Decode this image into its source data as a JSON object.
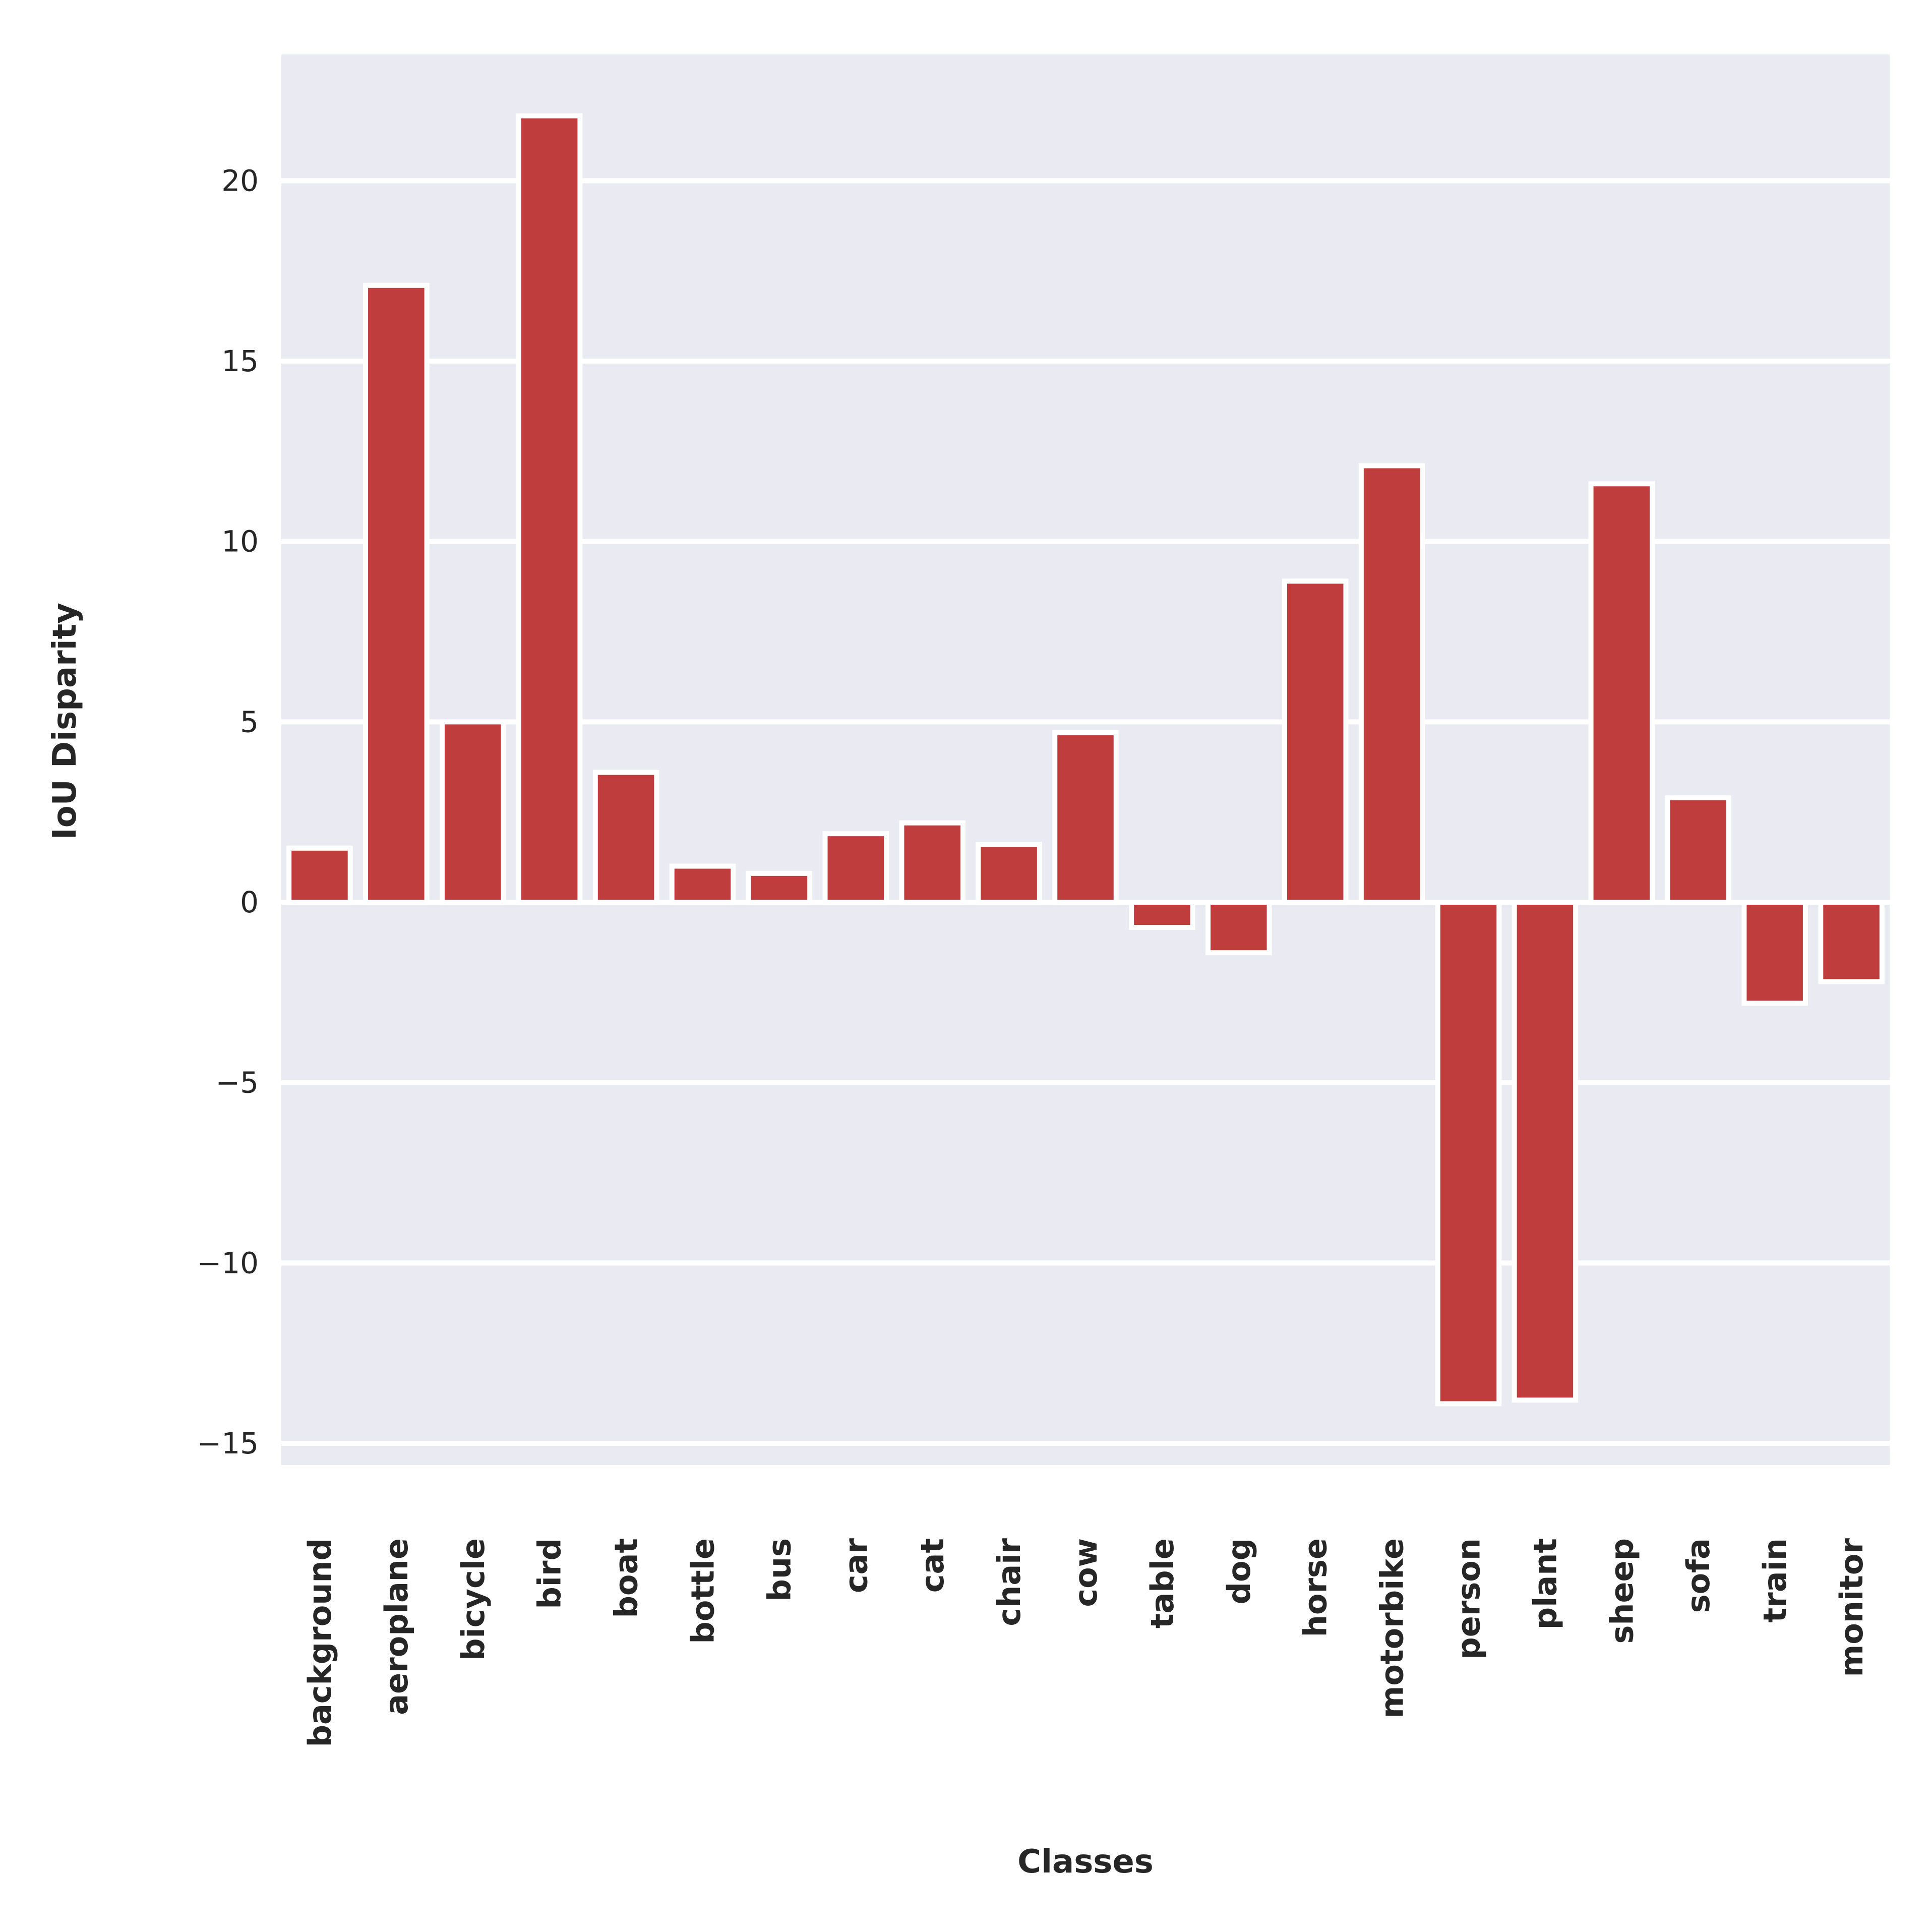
{
  "chart_data": {
    "type": "bar",
    "title": "",
    "xlabel": "Classes",
    "ylabel": "IoU Disparity",
    "categories": [
      "background",
      "aeroplane",
      "bicycle",
      "bird",
      "boat",
      "bottle",
      "bus",
      "car",
      "cat",
      "chair",
      "cow",
      "table",
      "dog",
      "horse",
      "motorbike",
      "person",
      "plant",
      "sheep",
      "sofa",
      "train",
      "monitor"
    ],
    "values": [
      1.5,
      17.1,
      5.0,
      21.8,
      3.6,
      1.0,
      0.8,
      1.9,
      2.2,
      1.6,
      4.7,
      -0.7,
      -1.4,
      8.9,
      12.1,
      -13.9,
      -13.8,
      11.6,
      2.9,
      -2.8,
      -2.2
    ],
    "yticks": [
      -15,
      -10,
      -5,
      0,
      5,
      10,
      15,
      20
    ],
    "ylim": [
      -15.6,
      23.5
    ],
    "grid": true,
    "colors": {
      "bar": "#c03d3e",
      "bar_edge": "#ffffff",
      "plot_background": "#eaeaf2",
      "grid": "#ffffff",
      "text": "#262626"
    }
  }
}
